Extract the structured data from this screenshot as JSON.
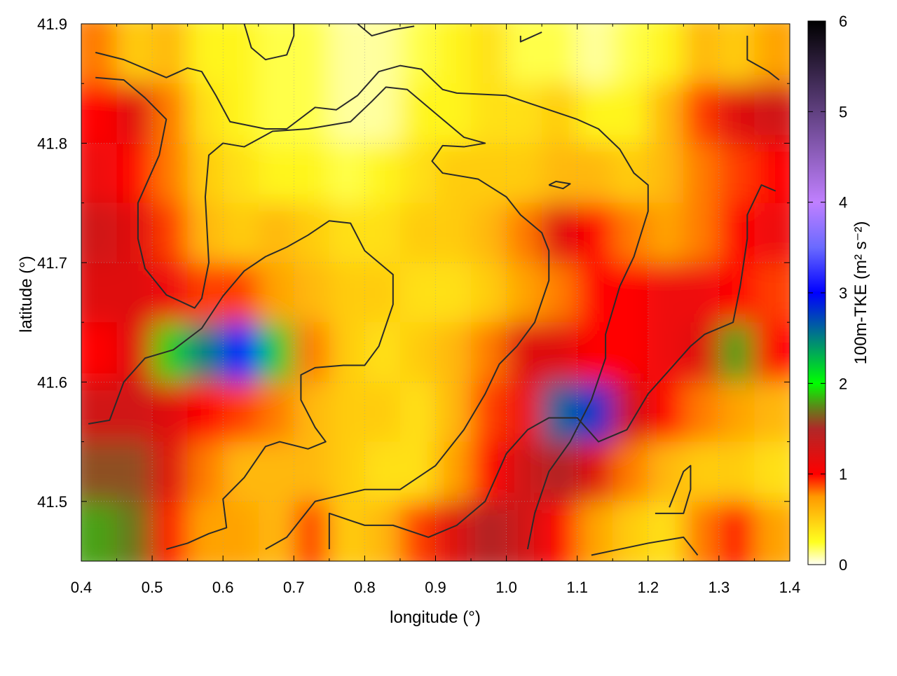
{
  "chart_data": {
    "type": "heatmap",
    "xlabel": "longitude (°)",
    "ylabel": "latitude (°)",
    "colorbar_label": "100m-TKE (m² s⁻²)",
    "xlim": [
      0.4,
      1.4
    ],
    "ylim": [
      41.45,
      41.9
    ],
    "clim": [
      0,
      6
    ],
    "grid": true,
    "x_ticks": [
      "0.4",
      "0.5",
      "0.6",
      "0.7",
      "0.8",
      "0.9",
      "1.0",
      "1.1",
      "1.2",
      "1.3",
      "1.4"
    ],
    "y_ticks": [
      "41.5",
      "41.6",
      "41.7",
      "41.8",
      "41.9"
    ],
    "colorbar_ticks": [
      "0",
      "1",
      "2",
      "3",
      "4",
      "5",
      "6"
    ],
    "colormap": [
      [
        0,
        "#fffff4"
      ],
      [
        0.25,
        "#ffff20"
      ],
      [
        0.75,
        "#ff9900"
      ],
      [
        1.0,
        "#ff0000"
      ],
      [
        1.5,
        "#b02828"
      ],
      [
        1.75,
        "#5a8a18"
      ],
      [
        2.0,
        "#00ff00"
      ],
      [
        2.5,
        "#008080"
      ],
      [
        3.0,
        "#0000ff"
      ],
      [
        3.5,
        "#6a6aff"
      ],
      [
        4.0,
        "#c080ff"
      ],
      [
        5.0,
        "#604080"
      ],
      [
        6.0,
        "#000000"
      ]
    ],
    "x_centers": [
      0.425,
      0.475,
      0.525,
      0.575,
      0.625,
      0.675,
      0.725,
      0.775,
      0.825,
      0.875,
      0.925,
      0.975,
      1.025,
      1.075,
      1.125,
      1.175,
      1.225,
      1.275,
      1.325,
      1.375
    ],
    "y_centers": [
      41.875,
      41.825,
      41.775,
      41.725,
      41.675,
      41.625,
      41.575,
      41.525,
      41.475
    ],
    "values": [
      [
        0.8,
        0.5,
        0.6,
        0.3,
        0.3,
        0.2,
        0.2,
        0.1,
        0.1,
        0.2,
        0.3,
        0.4,
        0.2,
        0.2,
        0.1,
        0.2,
        0.3,
        0.6,
        0.5,
        0.7
      ],
      [
        1.0,
        1.2,
        0.8,
        0.4,
        0.3,
        0.2,
        0.2,
        0.1,
        0.1,
        0.3,
        0.3,
        0.4,
        0.4,
        0.5,
        0.3,
        0.3,
        0.6,
        0.9,
        1.2,
        1.3
      ],
      [
        1.1,
        1.0,
        0.8,
        0.5,
        0.4,
        0.3,
        0.3,
        0.2,
        0.3,
        0.4,
        0.5,
        0.5,
        0.5,
        0.6,
        0.6,
        0.5,
        0.6,
        0.8,
        0.9,
        1.0
      ],
      [
        1.3,
        1.2,
        0.9,
        0.6,
        0.5,
        0.6,
        0.5,
        0.4,
        0.4,
        0.5,
        0.5,
        0.6,
        0.8,
        1.2,
        1.0,
        0.8,
        0.7,
        0.8,
        1.0,
        1.1
      ],
      [
        1.2,
        1.2,
        1.1,
        0.9,
        0.9,
        0.7,
        0.6,
        0.5,
        0.5,
        0.4,
        0.4,
        0.5,
        0.7,
        0.8,
        1.0,
        1.0,
        1.1,
        1.1,
        1.0,
        0.9
      ],
      [
        1.0,
        1.2,
        1.9,
        2.5,
        3.0,
        2.2,
        0.8,
        0.5,
        0.4,
        0.5,
        0.6,
        0.8,
        1.2,
        1.2,
        1.0,
        1.0,
        1.1,
        1.2,
        1.8,
        1.0
      ],
      [
        1.3,
        1.3,
        1.2,
        1.0,
        0.9,
        0.8,
        0.6,
        0.5,
        0.5,
        0.4,
        0.6,
        0.9,
        1.1,
        2.6,
        2.8,
        1.3,
        1.0,
        0.8,
        0.7,
        0.6
      ],
      [
        1.6,
        1.6,
        1.2,
        0.8,
        0.6,
        0.6,
        0.6,
        0.5,
        0.4,
        0.4,
        0.7,
        1.0,
        1.3,
        1.5,
        1.2,
        0.8,
        0.6,
        0.5,
        0.5,
        0.4
      ],
      [
        1.8,
        1.7,
        1.0,
        0.7,
        0.7,
        0.6,
        0.9,
        0.5,
        0.6,
        0.9,
        1.2,
        1.5,
        1.3,
        1.0,
        0.7,
        0.5,
        0.4,
        0.8,
        1.0,
        0.7
      ]
    ],
    "contours": [
      [
        [
          0.42,
          41.876
        ],
        [
          0.46,
          41.87
        ],
        [
          0.52,
          41.855
        ],
        [
          0.55,
          41.863
        ],
        [
          0.57,
          41.86
        ],
        [
          0.59,
          41.84
        ],
        [
          0.61,
          41.818
        ],
        [
          0.66,
          41.812
        ],
        [
          0.69,
          41.812
        ],
        [
          0.73,
          41.83
        ],
        [
          0.76,
          41.828
        ],
        [
          0.79,
          41.84
        ],
        [
          0.82,
          41.86
        ],
        [
          0.85,
          41.865
        ],
        [
          0.88,
          41.862
        ],
        [
          0.91,
          41.845
        ],
        [
          0.93,
          41.842
        ],
        [
          1.0,
          41.84
        ],
        [
          1.05,
          41.83
        ],
        [
          1.1,
          41.82
        ],
        [
          1.13,
          41.812
        ],
        [
          1.16,
          41.795
        ],
        [
          1.18,
          41.775
        ],
        [
          1.2,
          41.765
        ],
        [
          1.2,
          41.743
        ],
        [
          1.18,
          41.705
        ],
        [
          1.16,
          41.68
        ],
        [
          1.14,
          41.64
        ],
        [
          1.14,
          41.62
        ],
        [
          1.12,
          41.585
        ],
        [
          1.09,
          41.55
        ],
        [
          1.06,
          41.525
        ],
        [
          1.04,
          41.49
        ],
        [
          1.03,
          41.46
        ]
      ],
      [
        [
          0.41,
          41.565
        ],
        [
          0.44,
          41.568
        ],
        [
          0.46,
          41.6
        ],
        [
          0.49,
          41.62
        ],
        [
          0.53,
          41.627
        ],
        [
          0.57,
          41.645
        ],
        [
          0.6,
          41.672
        ],
        [
          0.63,
          41.693
        ],
        [
          0.66,
          41.705
        ],
        [
          0.69,
          41.713
        ],
        [
          0.72,
          41.723
        ],
        [
          0.75,
          41.735
        ],
        [
          0.78,
          41.733
        ],
        [
          0.8,
          41.71
        ],
        [
          0.84,
          41.69
        ],
        [
          0.84,
          41.665
        ],
        [
          0.82,
          41.63
        ],
        [
          0.8,
          41.614
        ],
        [
          0.77,
          41.614
        ],
        [
          0.73,
          41.612
        ],
        [
          0.71,
          41.606
        ],
        [
          0.71,
          41.585
        ],
        [
          0.73,
          41.562
        ],
        [
          0.745,
          41.55
        ],
        [
          0.72,
          41.544
        ],
        [
          0.68,
          41.55
        ],
        [
          0.66,
          41.546
        ],
        [
          0.63,
          41.52
        ],
        [
          0.6,
          41.502
        ],
        [
          0.605,
          41.478
        ],
        [
          0.58,
          41.473
        ],
        [
          0.55,
          41.465
        ],
        [
          0.52,
          41.46
        ]
      ],
      [
        [
          0.42,
          41.855
        ],
        [
          0.46,
          41.853
        ],
        [
          0.49,
          41.838
        ],
        [
          0.52,
          41.82
        ],
        [
          0.51,
          41.79
        ],
        [
          0.48,
          41.75
        ],
        [
          0.48,
          41.72
        ],
        [
          0.49,
          41.695
        ],
        [
          0.52,
          41.673
        ],
        [
          0.56,
          41.662
        ],
        [
          0.57,
          41.67
        ],
        [
          0.58,
          41.7
        ],
        [
          0.575,
          41.755
        ],
        [
          0.58,
          41.79
        ],
        [
          0.6,
          41.8
        ],
        [
          0.63,
          41.797
        ],
        [
          0.67,
          41.81
        ],
        [
          0.72,
          41.812
        ],
        [
          0.78,
          41.818
        ],
        [
          0.81,
          41.835
        ],
        [
          0.83,
          41.847
        ],
        [
          0.86,
          41.845
        ],
        [
          0.9,
          41.825
        ],
        [
          0.94,
          41.805
        ],
        [
          0.97,
          41.8
        ],
        [
          0.94,
          41.797
        ],
        [
          0.91,
          41.798
        ],
        [
          0.895,
          41.785
        ],
        [
          0.91,
          41.775
        ],
        [
          0.96,
          41.77
        ],
        [
          1.0,
          41.755
        ],
        [
          1.02,
          41.74
        ],
        [
          1.05,
          41.725
        ],
        [
          1.06,
          41.71
        ],
        [
          1.06,
          41.685
        ],
        [
          1.04,
          41.65
        ],
        [
          1.015,
          41.63
        ],
        [
          0.99,
          41.615
        ],
        [
          0.97,
          41.59
        ],
        [
          0.94,
          41.56
        ],
        [
          0.9,
          41.53
        ],
        [
          0.85,
          41.51
        ],
        [
          0.8,
          41.51
        ],
        [
          0.73,
          41.5
        ],
        [
          0.69,
          41.47
        ],
        [
          0.66,
          41.46
        ]
      ],
      [
        [
          0.75,
          41.46
        ],
        [
          0.75,
          41.49
        ],
        [
          0.8,
          41.48
        ],
        [
          0.84,
          41.48
        ],
        [
          0.89,
          41.47
        ],
        [
          0.93,
          41.48
        ],
        [
          0.97,
          41.5
        ],
        [
          1.0,
          41.54
        ],
        [
          1.03,
          41.56
        ],
        [
          1.06,
          41.57
        ],
        [
          1.1,
          41.57
        ],
        [
          1.13,
          41.55
        ],
        [
          1.17,
          41.56
        ],
        [
          1.2,
          41.59
        ],
        [
          1.23,
          41.61
        ],
        [
          1.26,
          41.63
        ],
        [
          1.28,
          41.64
        ],
        [
          1.32,
          41.65
        ],
        [
          1.33,
          41.68
        ],
        [
          1.34,
          41.72
        ],
        [
          1.34,
          41.74
        ],
        [
          1.36,
          41.765
        ],
        [
          1.38,
          41.76
        ]
      ],
      [
        [
          1.34,
          41.89
        ],
        [
          1.34,
          41.87
        ],
        [
          1.37,
          41.86
        ],
        [
          1.385,
          41.853
        ]
      ],
      [
        [
          1.21,
          41.49
        ],
        [
          1.25,
          41.49
        ],
        [
          1.26,
          41.51
        ],
        [
          1.26,
          41.53
        ],
        [
          1.25,
          41.525
        ],
        [
          1.23,
          41.495
        ]
      ],
      [
        [
          1.12,
          41.455
        ],
        [
          1.16,
          41.46
        ],
        [
          1.2,
          41.465
        ],
        [
          1.25,
          41.47
        ],
        [
          1.27,
          41.455
        ]
      ],
      [
        [
          0.63,
          41.9
        ],
        [
          0.64,
          41.88
        ],
        [
          0.66,
          41.87
        ],
        [
          0.69,
          41.874
        ],
        [
          0.7,
          41.89
        ],
        [
          0.7,
          41.9
        ]
      ],
      [
        [
          0.79,
          41.9
        ],
        [
          0.81,
          41.89
        ],
        [
          0.84,
          41.895
        ],
        [
          0.87,
          41.898
        ]
      ],
      [
        [
          1.02,
          41.89
        ],
        [
          1.02,
          41.885
        ],
        [
          1.05,
          41.893
        ]
      ],
      [
        [
          1.06,
          41.765
        ],
        [
          1.08,
          41.762
        ],
        [
          1.09,
          41.766
        ],
        [
          1.07,
          41.768
        ],
        [
          1.06,
          41.765
        ]
      ]
    ]
  }
}
